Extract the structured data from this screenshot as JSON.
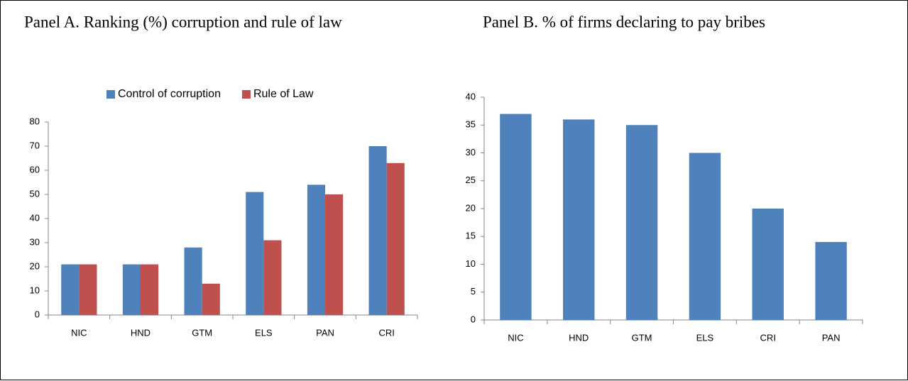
{
  "chart_data": [
    {
      "type": "bar",
      "title": "Panel A. Ranking (%) corruption and rule of law",
      "categories": [
        "NIC",
        "HND",
        "GTM",
        "ELS",
        "PAN",
        "CRI"
      ],
      "series": [
        {
          "name": "Control of corruption",
          "color": "#4f81bd",
          "values": [
            21,
            21,
            28,
            51,
            54,
            70
          ]
        },
        {
          "name": "Rule of Law",
          "color": "#c0504d",
          "values": [
            21,
            21,
            13,
            31,
            50,
            63
          ]
        }
      ],
      "ylim": [
        0,
        80
      ],
      "yticks": [
        0,
        10,
        20,
        30,
        40,
        50,
        60,
        70,
        80
      ],
      "legend": "top"
    },
    {
      "type": "bar",
      "title": "Panel B.  % of firms declaring to pay bribes",
      "categories": [
        "NIC",
        "HND",
        "GTM",
        "ELS",
        "CRI",
        "PAN"
      ],
      "values": [
        37,
        36,
        35,
        30,
        20,
        14
      ],
      "color": "#4f81bd",
      "ylim": [
        0,
        40
      ],
      "yticks": [
        0,
        5,
        10,
        15,
        20,
        25,
        30,
        35,
        40
      ]
    }
  ]
}
